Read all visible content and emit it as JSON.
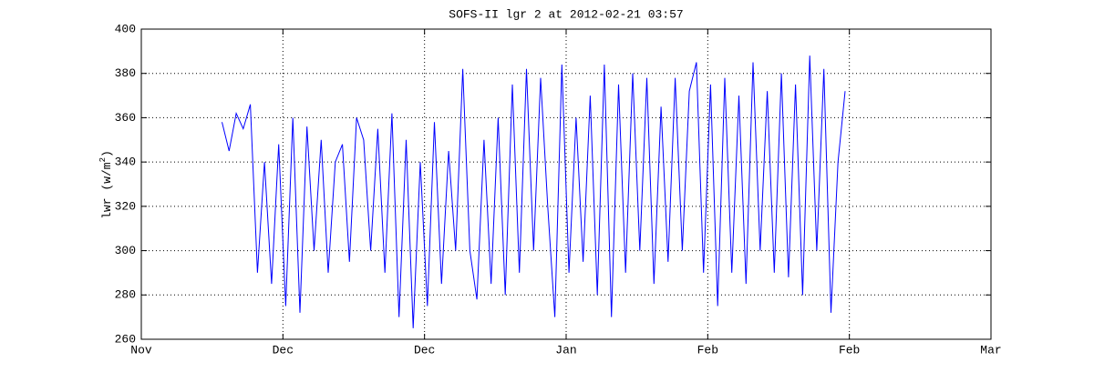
{
  "chart_data": {
    "type": "line",
    "title": "SOFS-II lgr 2 at 2012-02-21 03:57",
    "ylabel": {
      "text": "lwr (w/m",
      "sup": "2",
      "end": ")"
    },
    "xlim": [
      0,
      6
    ],
    "xticks": [
      {
        "value": 0,
        "label": "Nov"
      },
      {
        "value": 1,
        "label": "Dec"
      },
      {
        "value": 2,
        "label": "Dec"
      },
      {
        "value": 3,
        "label": "Jan"
      },
      {
        "value": 4,
        "label": "Feb"
      },
      {
        "value": 5,
        "label": "Feb"
      },
      {
        "value": 6,
        "label": "Mar"
      }
    ],
    "ylim": [
      260,
      400
    ],
    "yticks": [
      260,
      280,
      300,
      320,
      340,
      360,
      380,
      400
    ],
    "grid": true,
    "series": [
      {
        "color": "#0000ff",
        "x": [
          0.57,
          0.62,
          0.67,
          0.72,
          0.77,
          0.82,
          0.87,
          0.92,
          0.97,
          1.02,
          1.07,
          1.12,
          1.17,
          1.22,
          1.27,
          1.32,
          1.37,
          1.42,
          1.47,
          1.52,
          1.57,
          1.62,
          1.67,
          1.72,
          1.77,
          1.82,
          1.87,
          1.92,
          1.97,
          2.02,
          2.07,
          2.12,
          2.17,
          2.22,
          2.27,
          2.32,
          2.37,
          2.42,
          2.47,
          2.52,
          2.57,
          2.62,
          2.67,
          2.72,
          2.77,
          2.82,
          2.87,
          2.92,
          2.97,
          3.02,
          3.07,
          3.12,
          3.17,
          3.22,
          3.27,
          3.32,
          3.37,
          3.42,
          3.47,
          3.52,
          3.57,
          3.62,
          3.67,
          3.72,
          3.77,
          3.82,
          3.87,
          3.92,
          3.97,
          4.02,
          4.07,
          4.12,
          4.17,
          4.22,
          4.27,
          4.32,
          4.37,
          4.42,
          4.47,
          4.52,
          4.57,
          4.62,
          4.67,
          4.72,
          4.77,
          4.82,
          4.87,
          4.92,
          4.97
        ],
        "values": [
          358,
          345,
          362,
          355,
          366,
          290,
          340,
          285,
          348,
          275,
          360,
          272,
          356,
          300,
          350,
          290,
          340,
          348,
          295,
          360,
          350,
          300,
          355,
          290,
          362,
          270,
          350,
          265,
          340,
          275,
          358,
          285,
          345,
          300,
          382,
          300,
          278,
          350,
          285,
          360,
          280,
          375,
          290,
          382,
          300,
          378,
          320,
          270,
          384,
          290,
          360,
          295,
          370,
          280,
          384,
          270,
          375,
          290,
          380,
          300,
          378,
          285,
          365,
          295,
          378,
          300,
          372,
          385,
          290,
          375,
          275,
          378,
          290,
          370,
          285,
          385,
          300,
          372,
          290,
          380,
          288,
          375,
          280,
          388,
          300,
          382,
          272,
          340,
          372
        ]
      }
    ]
  }
}
